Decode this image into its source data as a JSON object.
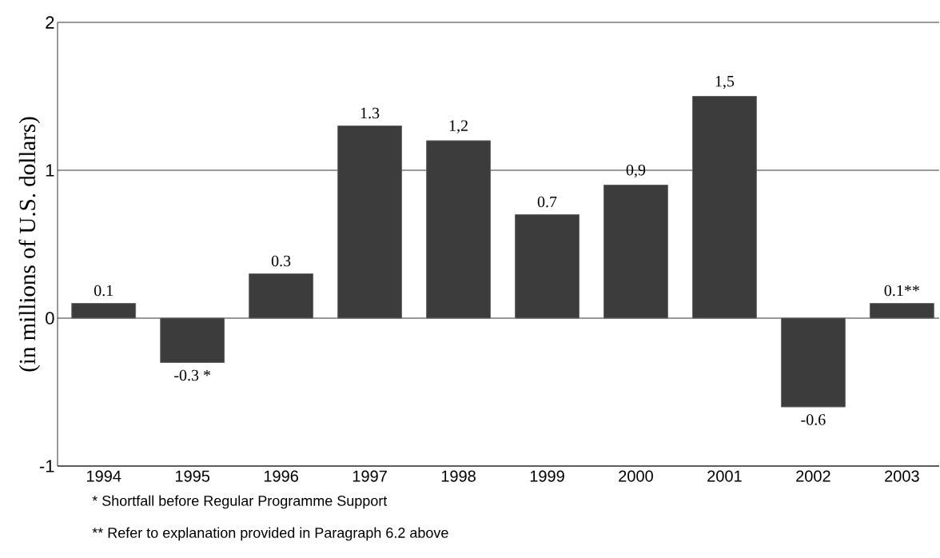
{
  "chart_data": {
    "type": "bar",
    "ylabel": "(in millions of U.S. dollars)",
    "categories": [
      "1994",
      "1995",
      "1996",
      "1997",
      "1998",
      "1999",
      "2000",
      "2001",
      "2002",
      "2003"
    ],
    "values": [
      0.1,
      -0.3,
      0.3,
      1.3,
      1.2,
      0.7,
      0.9,
      1.5,
      -0.6,
      0.1
    ],
    "value_labels": [
      "0.1",
      "-0.3 *",
      "0.3",
      "1.3",
      "1,2",
      "0.7",
      "0,9",
      "1,5",
      "-0.6",
      "0.1**"
    ],
    "color": "#3c3c3c",
    "ylim": [
      -1,
      2
    ],
    "yticks": [
      -1,
      0,
      1,
      2
    ],
    "grid": "y",
    "annotations": [
      "* Shortfall before Regular Programme Support",
      "** Refer to explanation provided in Paragraph 6.2 above"
    ]
  }
}
